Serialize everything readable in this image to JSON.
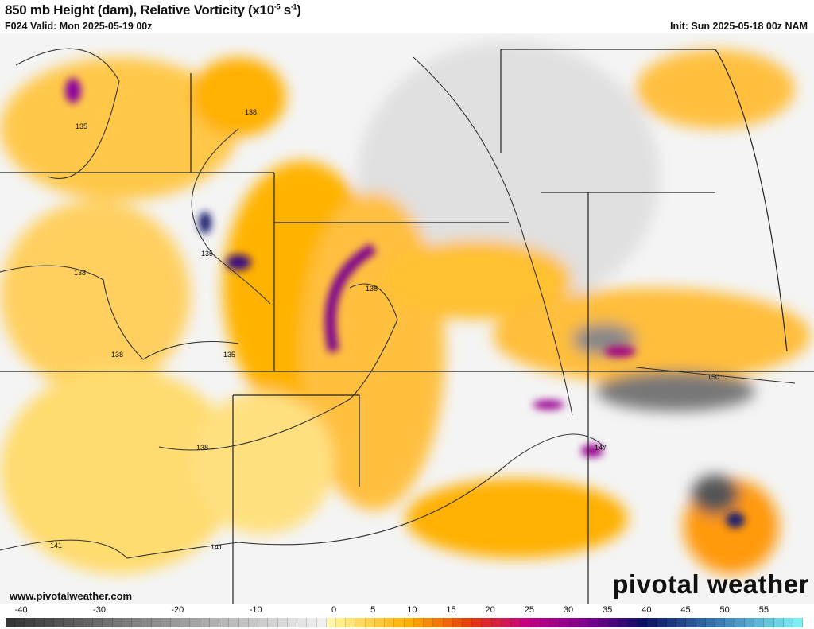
{
  "header": {
    "title": "850 mb Height (dam), Relative Vorticity (x10",
    "title_exp1": "-5",
    "title_mid": " s",
    "title_exp2": "-1",
    "title_end": ")",
    "valid": "F024 Valid: Mon 2025-05-19 00z",
    "init": "Init: Sun 2025-05-18 00z NAM"
  },
  "footer": {
    "website": "www.pivotalweather.com",
    "brand": "pivotal weather"
  },
  "colorbar": {
    "ticks": [
      "-40",
      "-30",
      "-20",
      "-10",
      "0",
      "5",
      "10",
      "15",
      "20",
      "25",
      "30",
      "35",
      "40",
      "45",
      "50",
      "55"
    ],
    "tick_values": [
      -40,
      -30,
      -20,
      -10,
      0,
      5,
      10,
      15,
      20,
      25,
      30,
      35,
      40,
      45,
      50,
      55
    ],
    "range": [
      -42,
      60
    ],
    "color_stops": [
      {
        "v": -42,
        "c": "#333333"
      },
      {
        "v": -1,
        "c": "#f2f2f2"
      },
      {
        "v": 0,
        "c": "#fff59a"
      },
      {
        "v": 10,
        "c": "#ffad00"
      },
      {
        "v": 18,
        "c": "#e43a10"
      },
      {
        "v": 25,
        "c": "#c40080"
      },
      {
        "v": 33,
        "c": "#7a0090"
      },
      {
        "v": 40,
        "c": "#0b1060"
      },
      {
        "v": 50,
        "c": "#3e7fb5"
      },
      {
        "v": 60,
        "c": "#80f0f5"
      }
    ]
  },
  "contour_labels": [
    "135",
    "138",
    "135",
    "138",
    "138",
    "135",
    "138",
    "138",
    "141",
    "141",
    "150",
    "147"
  ],
  "colors": {
    "positive_vorticity": "#ffb300",
    "strong_vorticity": "#7a0090",
    "negative_vorticity": "#9a9a9a",
    "height_contour": "#222222"
  }
}
